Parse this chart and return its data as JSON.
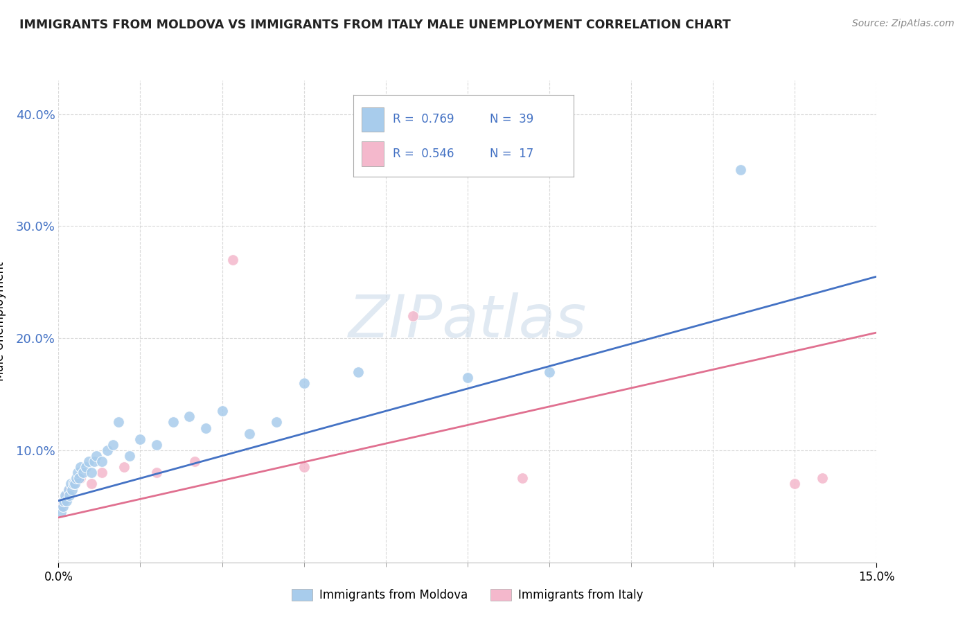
{
  "title": "IMMIGRANTS FROM MOLDOVA VS IMMIGRANTS FROM ITALY MALE UNEMPLOYMENT CORRELATION CHART",
  "source": "Source: ZipAtlas.com",
  "ylabel": "Male Unemployment",
  "x_min": 0.0,
  "x_max": 15.0,
  "y_min": 0.0,
  "y_max": 43.0,
  "yticks": [
    10.0,
    20.0,
    30.0,
    40.0
  ],
  "background_color": "#ffffff",
  "grid_color": "#d0d0d0",
  "watermark": "ZIPatlas",
  "series": [
    {
      "label": "Immigrants from Moldova",
      "R": 0.769,
      "N": 39,
      "color": "#a8ccec",
      "trend_color": "#4472C4",
      "x": [
        0.05,
        0.08,
        0.1,
        0.12,
        0.15,
        0.18,
        0.2,
        0.22,
        0.25,
        0.28,
        0.3,
        0.33,
        0.35,
        0.38,
        0.4,
        0.45,
        0.5,
        0.55,
        0.6,
        0.65,
        0.7,
        0.8,
        0.9,
        1.0,
        1.1,
        1.3,
        1.5,
        1.8,
        2.1,
        2.4,
        2.7,
        3.0,
        3.5,
        4.0,
        4.5,
        5.5,
        7.5,
        9.0,
        12.5
      ],
      "y": [
        4.5,
        5.0,
        5.5,
        6.0,
        5.5,
        6.5,
        6.0,
        7.0,
        6.5,
        7.0,
        7.0,
        7.5,
        8.0,
        7.5,
        8.5,
        8.0,
        8.5,
        9.0,
        8.0,
        9.0,
        9.5,
        9.0,
        10.0,
        10.5,
        12.5,
        9.5,
        11.0,
        10.5,
        12.5,
        13.0,
        12.0,
        13.5,
        11.5,
        12.5,
        16.0,
        17.0,
        16.5,
        17.0,
        35.0
      ],
      "trend_x0": 0.0,
      "trend_y0": 5.5,
      "trend_x1": 15.0,
      "trend_y1": 25.5
    },
    {
      "label": "Immigrants from Italy",
      "R": 0.546,
      "N": 17,
      "color": "#f4b8cc",
      "trend_color": "#e07090",
      "x": [
        0.05,
        0.1,
        0.15,
        0.2,
        0.3,
        0.4,
        0.6,
        0.8,
        1.2,
        1.8,
        2.5,
        3.2,
        4.5,
        6.5,
        8.5,
        13.5,
        14.0
      ],
      "y": [
        5.0,
        5.5,
        6.0,
        6.5,
        7.0,
        7.5,
        7.0,
        8.0,
        8.5,
        8.0,
        9.0,
        27.0,
        8.5,
        22.0,
        7.5,
        7.0,
        7.5
      ],
      "trend_x0": 0.0,
      "trend_y0": 4.0,
      "trend_x1": 15.0,
      "trend_y1": 20.5
    }
  ]
}
